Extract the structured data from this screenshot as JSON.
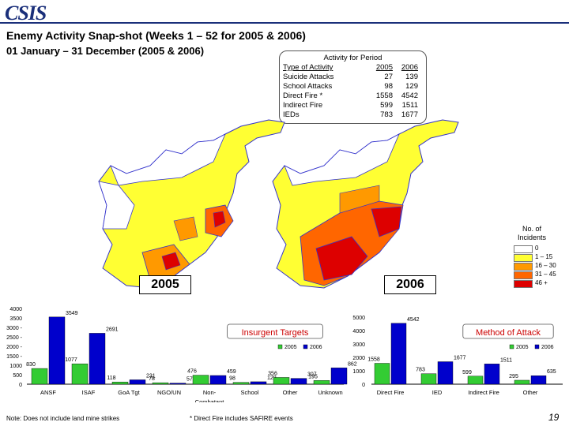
{
  "header": {
    "logo_text": "CSIS",
    "title": "Enemy Activity Snap-shot (Weeks 1 – 52 for 2005 & 2006)",
    "subtitle": "01 January – 31 December (2005 & 2006)"
  },
  "activity_table": {
    "heading": "Activity for Period",
    "columns": [
      "Type of Activity",
      "2005",
      "2006"
    ],
    "rows": [
      [
        "Suicide Attacks",
        "27",
        "139"
      ],
      [
        "School Attacks",
        "98",
        "129"
      ],
      [
        "Direct Fire *",
        "1558",
        "4542"
      ],
      [
        "Indirect Fire",
        "599",
        "1511"
      ],
      [
        "IEDs",
        "783",
        "1677"
      ]
    ]
  },
  "maps": {
    "label_2005": "2005",
    "label_2006": "2006",
    "colors": {
      "none": "#ffffff",
      "low": "#ffff33",
      "mid": "#ff9900",
      "high": "#ff6600",
      "vhigh": "#dd0000",
      "border": "#3333cc"
    }
  },
  "map_legend": {
    "title": "No. of Incidents",
    "items": [
      {
        "label": "0",
        "color": "#ffffff"
      },
      {
        "label": "1 – 15",
        "color": "#ffff33"
      },
      {
        "label": "16 – 30",
        "color": "#ff9900"
      },
      {
        "label": "31 – 45",
        "color": "#ff6600"
      },
      {
        "label": "46 +",
        "color": "#dd0000"
      }
    ]
  },
  "chart_data": [
    {
      "type": "bar",
      "title": "Insurgent Targets",
      "categories": [
        "ANSF",
        "ISAF",
        "GoA Tgt",
        "NGO/UN",
        "Non-Combatant",
        "School",
        "Other",
        "Unknown"
      ],
      "series": [
        {
          "name": "2005",
          "color": "#33cc33",
          "values": [
            830,
            1077,
            118,
            78,
            476,
            98,
            356,
            195
          ]
        },
        {
          "name": "2006",
          "color": "#0000cc",
          "values": [
            3549,
            2691,
            231,
            57,
            459,
            129,
            307,
            862
          ]
        }
      ],
      "y_ticks": [
        "0",
        "500",
        "1000",
        "1500 -",
        "2000 -",
        "2500 -",
        "3000 -",
        "3500",
        "4000"
      ],
      "ylim": [
        0,
        4000
      ]
    },
    {
      "type": "bar",
      "title": "Method of Attack",
      "categories": [
        "Direct Fire",
        "IED",
        "Indirect Fire",
        "Other"
      ],
      "series": [
        {
          "name": "2005",
          "color": "#33cc33",
          "values": [
            1558,
            783,
            599,
            295
          ]
        },
        {
          "name": "2006",
          "color": "#0000cc",
          "values": [
            4542,
            1677,
            1511,
            635
          ]
        }
      ],
      "y_ticks": [
        "0",
        "1000",
        "2000",
        "3000",
        "4000",
        "5000"
      ],
      "ylim": [
        0,
        5000
      ]
    }
  ],
  "footer": {
    "note_left": "Note: Does not include land mine strikes",
    "note_right": "* Direct Fire includes SAFIRE events",
    "page_number": "19"
  }
}
